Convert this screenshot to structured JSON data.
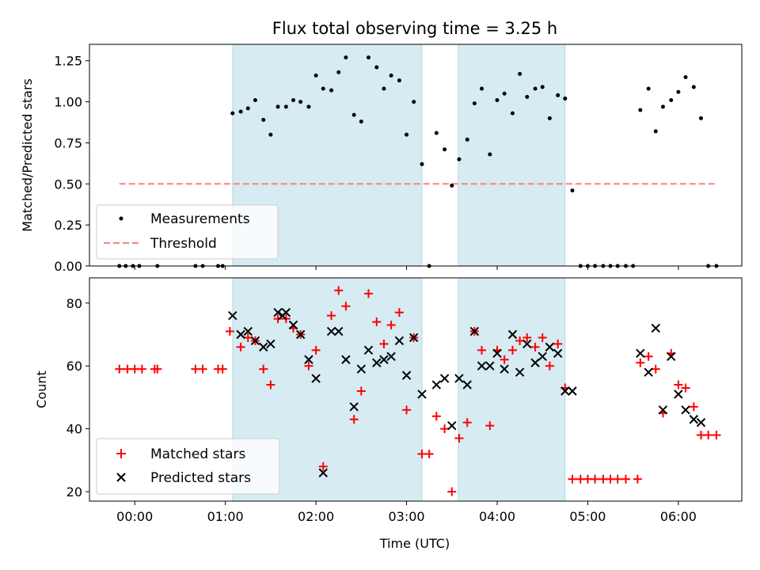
{
  "chart_data": [
    {
      "type": "scatter",
      "title": "Flux total observing time = 3.25 h",
      "xlabel": "",
      "ylabel": "Matched/Predicted stars",
      "ylim": [
        0,
        1.35
      ],
      "xlim": [
        -0.5,
        6.7
      ],
      "x_unit": "hours UTC",
      "y_ticks": [
        "0.00",
        "0.25",
        "0.50",
        "0.75",
        "1.00",
        "1.25"
      ],
      "y_tick_values": [
        0,
        0.25,
        0.5,
        0.75,
        1.0,
        1.25
      ],
      "legend": {
        "placement": "lower-left",
        "entries": [
          "Measurements",
          "Threshold"
        ]
      },
      "shaded_intervals": [
        [
          1.08,
          3.17
        ],
        [
          3.57,
          4.75
        ]
      ],
      "threshold": {
        "name": "Threshold",
        "value": 0.5,
        "x_start": -0.17,
        "x_end": 6.42,
        "color": "#ff7f7f"
      },
      "series": [
        {
          "name": "Measurements",
          "color": "#000000",
          "points": [
            [
              -0.17,
              0
            ],
            [
              -0.1,
              0
            ],
            [
              -0.02,
              0
            ],
            [
              0.05,
              0
            ],
            [
              0.25,
              0
            ],
            [
              0.67,
              0
            ],
            [
              0.75,
              0
            ],
            [
              0.92,
              0
            ],
            [
              0.97,
              0
            ],
            [
              1.08,
              0.93
            ],
            [
              1.17,
              0.94
            ],
            [
              1.25,
              0.96
            ],
            [
              1.33,
              1.01
            ],
            [
              1.42,
              0.89
            ],
            [
              1.5,
              0.8
            ],
            [
              1.58,
              0.97
            ],
            [
              1.67,
              0.97
            ],
            [
              1.75,
              1.01
            ],
            [
              1.83,
              1.0
            ],
            [
              1.92,
              0.97
            ],
            [
              2.0,
              1.16
            ],
            [
              2.08,
              1.08
            ],
            [
              2.17,
              1.07
            ],
            [
              2.25,
              1.18
            ],
            [
              2.33,
              1.27
            ],
            [
              2.42,
              0.92
            ],
            [
              2.5,
              0.88
            ],
            [
              2.58,
              1.27
            ],
            [
              2.67,
              1.21
            ],
            [
              2.75,
              1.08
            ],
            [
              2.83,
              1.16
            ],
            [
              2.92,
              1.13
            ],
            [
              3.0,
              0.8
            ],
            [
              3.08,
              1.0
            ],
            [
              3.17,
              0.62
            ],
            [
              3.25,
              0
            ],
            [
              3.33,
              0.81
            ],
            [
              3.42,
              0.71
            ],
            [
              3.5,
              0.49
            ],
            [
              3.58,
              0.65
            ],
            [
              3.67,
              0.77
            ],
            [
              3.75,
              0.99
            ],
            [
              3.83,
              1.08
            ],
            [
              3.92,
              0.68
            ],
            [
              4.0,
              1.01
            ],
            [
              4.08,
              1.05
            ],
            [
              4.17,
              0.93
            ],
            [
              4.25,
              1.17
            ],
            [
              4.33,
              1.03
            ],
            [
              4.42,
              1.08
            ],
            [
              4.5,
              1.09
            ],
            [
              4.58,
              0.9
            ],
            [
              4.67,
              1.04
            ],
            [
              4.75,
              1.02
            ],
            [
              4.83,
              0.46
            ],
            [
              4.92,
              0
            ],
            [
              5.0,
              0
            ],
            [
              5.08,
              0
            ],
            [
              5.17,
              0
            ],
            [
              5.25,
              0
            ],
            [
              5.33,
              0
            ],
            [
              5.42,
              0
            ],
            [
              5.5,
              0
            ],
            [
              5.58,
              0.95
            ],
            [
              5.67,
              1.08
            ],
            [
              5.75,
              0.82
            ],
            [
              5.83,
              0.97
            ],
            [
              5.92,
              1.01
            ],
            [
              6.0,
              1.06
            ],
            [
              6.08,
              1.15
            ],
            [
              6.17,
              1.09
            ],
            [
              6.25,
              0.9
            ],
            [
              6.33,
              0
            ],
            [
              6.42,
              0
            ]
          ]
        }
      ]
    },
    {
      "type": "scatter",
      "title": "",
      "xlabel": "Time (UTC)",
      "ylabel": "Count",
      "ylim": [
        17,
        88
      ],
      "xlim": [
        -0.5,
        6.7
      ],
      "x_unit": "hours UTC",
      "x_ticks": [
        "00:00",
        "01:00",
        "02:00",
        "03:00",
        "04:00",
        "05:00",
        "06:00"
      ],
      "x_tick_values": [
        0,
        1,
        2,
        3,
        4,
        5,
        6
      ],
      "y_ticks": [
        "20",
        "40",
        "60",
        "80"
      ],
      "y_tick_values": [
        20,
        40,
        60,
        80
      ],
      "legend": {
        "placement": "lower-left",
        "entries": [
          "Matched stars",
          "Predicted stars"
        ]
      },
      "shaded_intervals": [
        [
          1.08,
          3.17
        ],
        [
          3.57,
          4.75
        ]
      ],
      "series": [
        {
          "name": "Matched stars",
          "marker": "plus",
          "color": "#ff0000",
          "points": [
            [
              -0.17,
              59
            ],
            [
              -0.08,
              59
            ],
            [
              0,
              59
            ],
            [
              0.08,
              59
            ],
            [
              0.22,
              59
            ],
            [
              0.25,
              59
            ],
            [
              0.67,
              59
            ],
            [
              0.75,
              59
            ],
            [
              0.92,
              59
            ],
            [
              0.97,
              59
            ],
            [
              1.05,
              71
            ],
            [
              1.17,
              66
            ],
            [
              1.25,
              69
            ],
            [
              1.33,
              68
            ],
            [
              1.42,
              59
            ],
            [
              1.5,
              54
            ],
            [
              1.58,
              75
            ],
            [
              1.67,
              75
            ],
            [
              1.75,
              72
            ],
            [
              1.83,
              70
            ],
            [
              1.92,
              60
            ],
            [
              2.0,
              65
            ],
            [
              2.08,
              28
            ],
            [
              2.17,
              76
            ],
            [
              2.25,
              84
            ],
            [
              2.33,
              79
            ],
            [
              2.42,
              43
            ],
            [
              2.5,
              52
            ],
            [
              2.58,
              83
            ],
            [
              2.67,
              74
            ],
            [
              2.75,
              67
            ],
            [
              2.83,
              73
            ],
            [
              2.92,
              77
            ],
            [
              3.0,
              46
            ],
            [
              3.08,
              69
            ],
            [
              3.17,
              32
            ],
            [
              3.25,
              32
            ],
            [
              3.33,
              44
            ],
            [
              3.42,
              40
            ],
            [
              3.5,
              20
            ],
            [
              3.58,
              37
            ],
            [
              3.67,
              42
            ],
            [
              3.75,
              71
            ],
            [
              3.83,
              65
            ],
            [
              3.92,
              41
            ],
            [
              4.0,
              65
            ],
            [
              4.08,
              62
            ],
            [
              4.17,
              65
            ],
            [
              4.25,
              68
            ],
            [
              4.33,
              69
            ],
            [
              4.42,
              66
            ],
            [
              4.5,
              69
            ],
            [
              4.58,
              60
            ],
            [
              4.67,
              67
            ],
            [
              4.75,
              53
            ],
            [
              4.83,
              24
            ],
            [
              4.92,
              24
            ],
            [
              5.0,
              24
            ],
            [
              5.08,
              24
            ],
            [
              5.17,
              24
            ],
            [
              5.25,
              24
            ],
            [
              5.33,
              24
            ],
            [
              5.42,
              24
            ],
            [
              5.55,
              24
            ],
            [
              5.58,
              61
            ],
            [
              5.67,
              63
            ],
            [
              5.75,
              59
            ],
            [
              5.83,
              45
            ],
            [
              5.92,
              64
            ],
            [
              6.0,
              54
            ],
            [
              6.08,
              53
            ],
            [
              6.17,
              47
            ],
            [
              6.25,
              38
            ],
            [
              6.33,
              38
            ],
            [
              6.42,
              38
            ]
          ]
        },
        {
          "name": "Predicted stars",
          "marker": "x",
          "color": "#000000",
          "points": [
            [
              1.08,
              76
            ],
            [
              1.17,
              70
            ],
            [
              1.25,
              71
            ],
            [
              1.33,
              68
            ],
            [
              1.42,
              66
            ],
            [
              1.5,
              67
            ],
            [
              1.58,
              77
            ],
            [
              1.63,
              76
            ],
            [
              1.67,
              77
            ],
            [
              1.75,
              73
            ],
            [
              1.83,
              70
            ],
            [
              1.92,
              62
            ],
            [
              2.0,
              56
            ],
            [
              2.08,
              26
            ],
            [
              2.17,
              71
            ],
            [
              2.25,
              71
            ],
            [
              2.33,
              62
            ],
            [
              2.42,
              47
            ],
            [
              2.5,
              59
            ],
            [
              2.58,
              65
            ],
            [
              2.67,
              61
            ],
            [
              2.75,
              62
            ],
            [
              2.83,
              63
            ],
            [
              2.92,
              68
            ],
            [
              3.0,
              57
            ],
            [
              3.08,
              69
            ],
            [
              3.17,
              51
            ],
            [
              3.33,
              54
            ],
            [
              3.42,
              56
            ],
            [
              3.5,
              41
            ],
            [
              3.58,
              56
            ],
            [
              3.67,
              54
            ],
            [
              3.75,
              71
            ],
            [
              3.83,
              60
            ],
            [
              3.92,
              60
            ],
            [
              4.0,
              64
            ],
            [
              4.08,
              59
            ],
            [
              4.17,
              70
            ],
            [
              4.25,
              58
            ],
            [
              4.33,
              67
            ],
            [
              4.42,
              61
            ],
            [
              4.5,
              63
            ],
            [
              4.58,
              66
            ],
            [
              4.67,
              64
            ],
            [
              4.75,
              52
            ],
            [
              4.83,
              52
            ],
            [
              5.58,
              64
            ],
            [
              5.67,
              58
            ],
            [
              5.75,
              72
            ],
            [
              5.83,
              46
            ],
            [
              5.92,
              63
            ],
            [
              6.0,
              51
            ],
            [
              6.08,
              46
            ],
            [
              6.17,
              43
            ],
            [
              6.25,
              42
            ]
          ]
        }
      ]
    }
  ]
}
